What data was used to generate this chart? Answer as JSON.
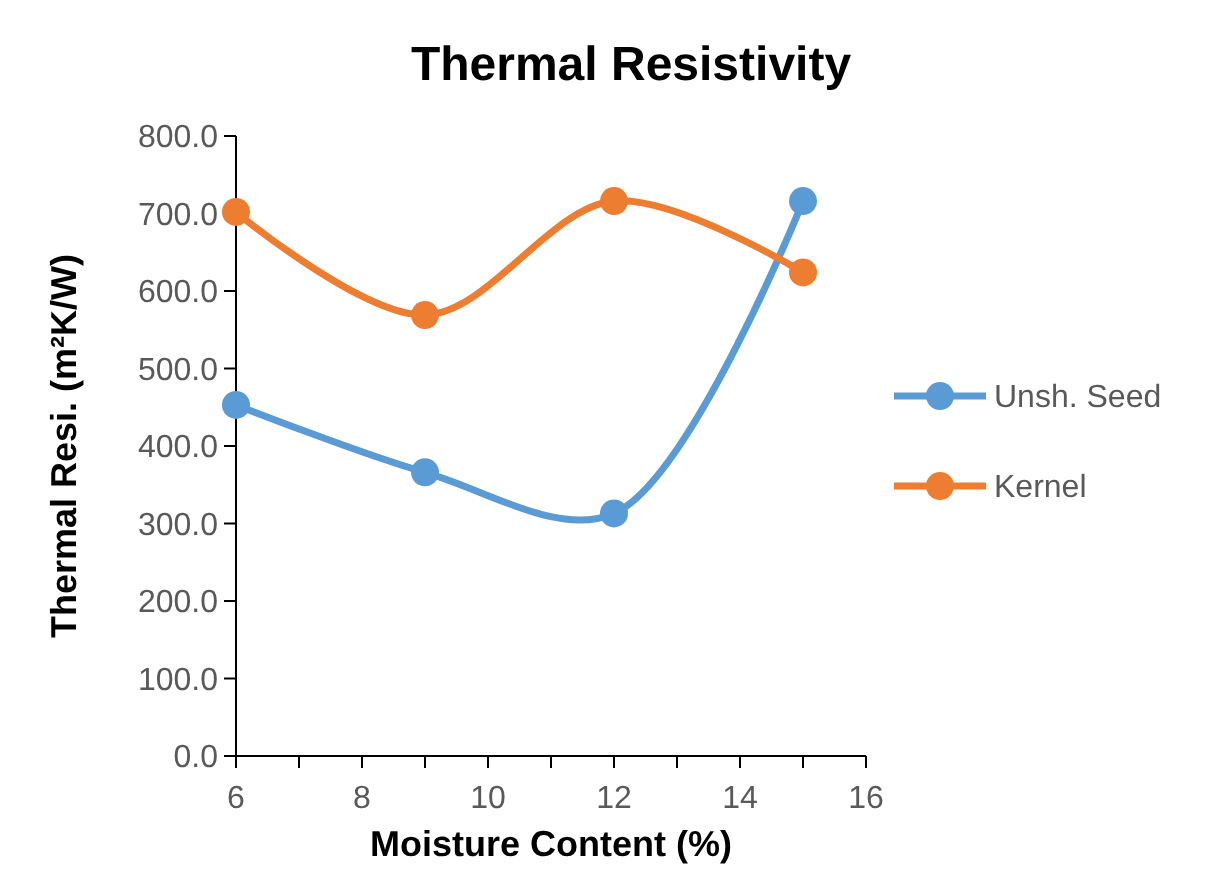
{
  "chart_data": {
    "type": "line",
    "title": "Thermal Resistivity",
    "xlabel": "Moisture Content (%)",
    "ylabel": "Thermal Resi.  (m²K/W)",
    "x": [
      6,
      9,
      12,
      15
    ],
    "series": [
      {
        "name": "Unsh. Seed",
        "color": "#5b9bd5",
        "values": [
          453,
          366,
          313,
          716
        ]
      },
      {
        "name": "Kernel",
        "color": "#ed7d31",
        "values": [
          702,
          569,
          716,
          624
        ]
      }
    ],
    "xlim": [
      6,
      16
    ],
    "xticks": [
      6,
      {
        "value": 7,
        "label": null
      },
      8,
      {
        "value": 9,
        "label": null
      },
      10,
      {
        "value": 11,
        "label": null
      },
      12,
      {
        "value": 13,
        "label": null
      },
      14,
      {
        "value": 15,
        "label": null
      },
      16
    ],
    "ylim": [
      0,
      800
    ],
    "yticks": [
      {
        "value": 0,
        "label": "0.0"
      },
      {
        "value": 100,
        "label": "100.0"
      },
      {
        "value": 200,
        "label": "200.0"
      },
      {
        "value": 300,
        "label": "300.0"
      },
      {
        "value": 400,
        "label": "400.0"
      },
      {
        "value": 500,
        "label": "500.0"
      },
      {
        "value": 600,
        "label": "600.0"
      },
      {
        "value": 700,
        "label": "700.0"
      },
      {
        "value": 800,
        "label": "800.0"
      }
    ],
    "grid": false,
    "legend": "right",
    "marker": "circle",
    "line_style": "solid"
  }
}
